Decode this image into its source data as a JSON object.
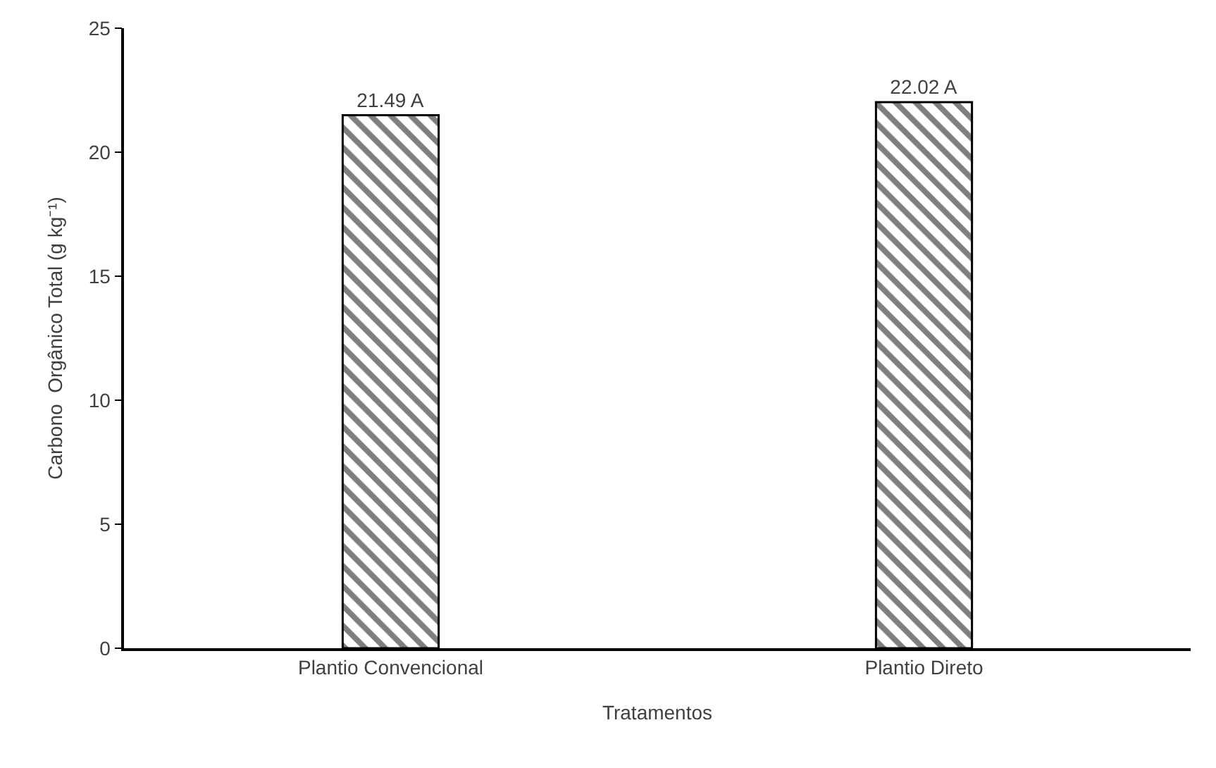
{
  "chart_data": {
    "type": "bar",
    "xlabel": "Tratamentos",
    "ylabel": "Carbono  Orgânico Total (g kg⁻¹)",
    "categories": [
      "Plantio Convencional",
      "Plantio Direto"
    ],
    "values": [
      21.49,
      22.02
    ],
    "value_labels": [
      "21.49 A",
      "22.02 A"
    ],
    "color": "#000000",
    "ylim": [
      0,
      25
    ],
    "yticks": [
      0,
      5,
      10,
      15,
      20,
      25
    ],
    "grid": false
  }
}
